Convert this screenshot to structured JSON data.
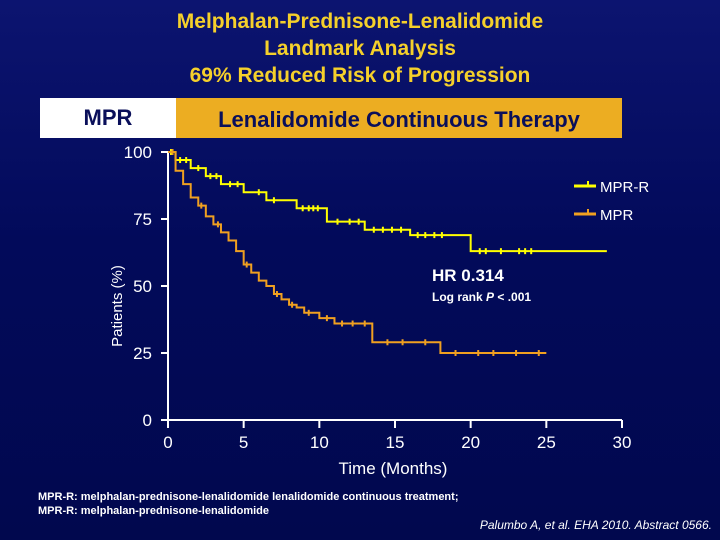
{
  "title": {
    "line1": "Melphalan-Prednisone-Lenalidomide",
    "line2": "Landmark Analysis",
    "line3": "69% Reduced Risk of Progression"
  },
  "band": {
    "left": "MPR",
    "right": "Lenalidomide Continuous Therapy"
  },
  "colors": {
    "title": "#f5d02b",
    "mpr_r_line": "#ffff00",
    "mpr_line": "#f0a020",
    "band_left_bg": "#ffffff",
    "band_right_bg": "#ecad22"
  },
  "annotation": {
    "hr": "HR 0.314",
    "logrank_prefix": "Log rank ",
    "logrank_p": "P",
    "logrank_suffix": " < .001"
  },
  "footnote": {
    "line1": "MPR-R: melphalan-prednisone-lenalidomide lenalidomide continuous treatment;",
    "line2": "MPR-R: melphalan-prednisone-lenalidomide"
  },
  "citation": "Palumbo A, et al. EHA 2010. Abstract 0566.",
  "chart_data": {
    "type": "line",
    "step": true,
    "xlabel": "Time (Months)",
    "ylabel": "Patients (%)",
    "xlim": [
      0,
      30
    ],
    "ylim": [
      0,
      100
    ],
    "xticks": [
      0,
      5,
      10,
      15,
      20,
      25,
      30
    ],
    "yticks": [
      0,
      25,
      50,
      75,
      100
    ],
    "legend_position": "top-right",
    "series": [
      {
        "name": "MPR-R",
        "color": "#ffff00",
        "x": [
          0,
          0.5,
          1.5,
          2.5,
          3.5,
          5,
          6.5,
          8.5,
          10.5,
          13,
          16,
          20,
          29
        ],
        "y": [
          100,
          97,
          94,
          91,
          88,
          85,
          82,
          79,
          74,
          71,
          69,
          63,
          63
        ],
        "censored_x": [
          0.2,
          0.8,
          1.2,
          2.0,
          2.8,
          3.2,
          4.1,
          4.6,
          6.0,
          7.0,
          8.9,
          9.3,
          9.6,
          9.9,
          11.2,
          12.0,
          12.6,
          13.6,
          14.2,
          14.8,
          15.4,
          16.5,
          17.0,
          17.6,
          18.1,
          20.6,
          21.0,
          22.0,
          23.2,
          23.6,
          24.0
        ]
      },
      {
        "name": "MPR",
        "color": "#f0a020",
        "x": [
          0,
          0.5,
          1.0,
          1.5,
          2.0,
          2.5,
          3.0,
          3.5,
          4.0,
          4.5,
          5.0,
          5.5,
          6.0,
          6.5,
          7.0,
          7.5,
          8.0,
          8.5,
          9.0,
          10.0,
          11.0,
          13.5,
          18.0,
          25.0
        ],
        "y": [
          100,
          93,
          88,
          83,
          80,
          76,
          73,
          70,
          67,
          63,
          58,
          55,
          52,
          50,
          47,
          45,
          43,
          42,
          40,
          38,
          36,
          29,
          25,
          25
        ],
        "censored_x": [
          0.3,
          2.2,
          3.3,
          5.2,
          7.2,
          8.2,
          9.3,
          10.5,
          11.5,
          12.2,
          13.0,
          14.5,
          15.5,
          17.0,
          19.0,
          20.5,
          21.5,
          23.0,
          24.5
        ]
      }
    ]
  }
}
